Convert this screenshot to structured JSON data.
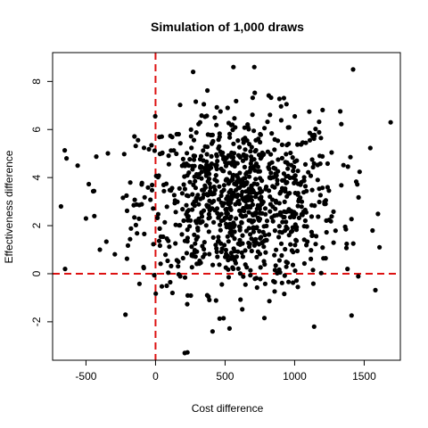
{
  "chart_data": {
    "type": "scatter",
    "title": "Simulation of 1,000 draws",
    "xlabel": "Cost difference",
    "ylabel": "Effectiveness difference",
    "xlim": [
      -740,
      1760
    ],
    "ylim": [
      -3.6,
      9.2
    ],
    "xticks": [
      -500,
      0,
      500,
      1000,
      1500
    ],
    "yticks": [
      -2,
      0,
      2,
      4,
      6,
      8
    ],
    "xtick_labels": [
      "-500",
      "0",
      "500",
      "1000",
      "1500"
    ],
    "ytick_labels": [
      "-2",
      "0",
      "2",
      "4",
      "6",
      "8"
    ],
    "grid": false,
    "legend": "none",
    "reference_lines": [
      {
        "orientation": "vertical",
        "value": 0,
        "color": "#dd1111",
        "style": "dashed"
      },
      {
        "orientation": "horizontal",
        "value": 0,
        "color": "#dd1111",
        "style": "dashed"
      }
    ],
    "point_color": "#000000",
    "n_points": 1000,
    "point_distribution": {
      "x_mean": 600,
      "x_sd": 360,
      "y_mean": 3.0,
      "y_sd": 1.85
    },
    "notable_points": [
      {
        "x": -680,
        "y": 2.8
      },
      {
        "x": -650,
        "y": 0.2
      },
      {
        "x": -640,
        "y": 4.8
      },
      {
        "x": -560,
        "y": 4.5
      },
      {
        "x": -500,
        "y": 2.3
      },
      {
        "x": -440,
        "y": 2.4
      },
      {
        "x": -400,
        "y": 1.0
      },
      {
        "x": 210,
        "y": -3.3
      },
      {
        "x": 410,
        "y": -2.4
      },
      {
        "x": 270,
        "y": 8.4
      },
      {
        "x": 560,
        "y": 8.6
      },
      {
        "x": 710,
        "y": 8.6
      },
      {
        "x": 1420,
        "y": 8.5
      },
      {
        "x": 1690,
        "y": 6.3
      },
      {
        "x": 1610,
        "y": 1.1
      },
      {
        "x": 1560,
        "y": 1.8
      },
      {
        "x": 1380,
        "y": 0.2
      },
      {
        "x": 1140,
        "y": -2.2
      }
    ]
  }
}
